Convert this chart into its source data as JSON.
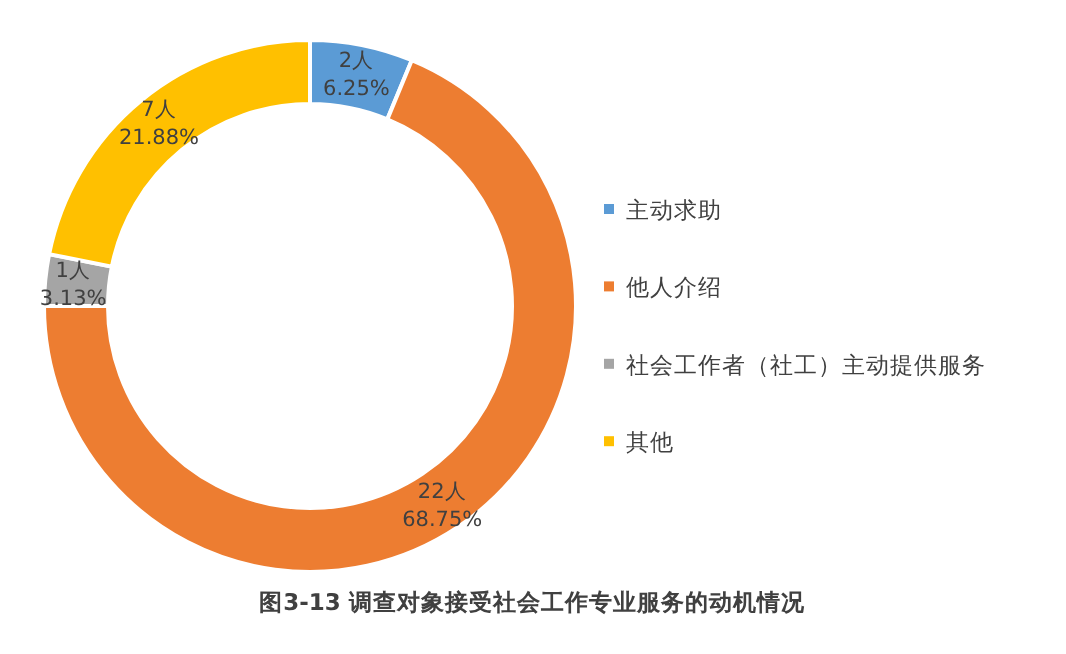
{
  "chart_data": {
    "type": "donut",
    "title": "图3-13 调查对象接受社会工作专业服务的动机情况",
    "categories": [
      "主动求助",
      "他人介绍",
      "社会工作者（社工）主动提供服务",
      "其他"
    ],
    "values": [
      2,
      22,
      1,
      7
    ],
    "colors": [
      "#5b9bd5",
      "#ed7d31",
      "#a5a5a5",
      "#ffc000"
    ],
    "value_labels": [
      "2人\n6.25%",
      "22人\n68.75%",
      "1人\n3.13%",
      "7人\n21.88%"
    ],
    "legend": "right"
  }
}
